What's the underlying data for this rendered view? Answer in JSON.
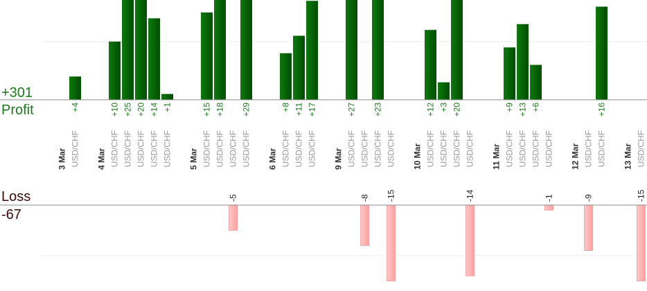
{
  "chart_data": {
    "type": "trade-bars",
    "profit": {
      "label": "Profit",
      "total": 301,
      "total_label": "+301",
      "gridlines": [
        10
      ]
    },
    "loss": {
      "label": "Loss",
      "total": -67,
      "gridlines": [
        -10
      ]
    },
    "days": [
      {
        "date": "3 Mar",
        "trades": [
          {
            "symbol": "USD/CHF",
            "value": 4,
            "label": "+4"
          }
        ]
      },
      {
        "date": "4 Mar",
        "trades": [
          {
            "symbol": "USD/CHF",
            "value": 10,
            "label": "+10"
          },
          {
            "symbol": "USD/CHF",
            "value": 25,
            "label": "+25"
          },
          {
            "symbol": "USD/CHF",
            "value": 20,
            "label": "+20"
          },
          {
            "symbol": "USD/CHF",
            "value": 14,
            "label": "+14"
          },
          {
            "symbol": "USD/CHF",
            "value": 1,
            "label": "+1"
          }
        ]
      },
      {
        "date": "5 Mar",
        "trades": [
          {
            "symbol": "USD/CHF",
            "value": 15,
            "label": "+15"
          },
          {
            "symbol": "USD/CHF",
            "value": 18,
            "label": "+18"
          },
          {
            "symbol": "USD/CHF",
            "value": -5
          },
          {
            "symbol": "USD/CHF",
            "value": 29,
            "label": "+29"
          }
        ]
      },
      {
        "date": "6 Mar",
        "trades": [
          {
            "symbol": "USD/CHF",
            "value": 8,
            "label": "+8"
          },
          {
            "symbol": "USD/CHF",
            "value": 11,
            "label": "+11"
          },
          {
            "symbol": "USD/CHF",
            "value": 17,
            "label": "+17"
          }
        ]
      },
      {
        "date": "9 Mar",
        "trades": [
          {
            "symbol": "USD/CHF",
            "value": 27,
            "label": "+27"
          },
          {
            "symbol": "USD/CHF",
            "value": -8
          },
          {
            "symbol": "USD/CHF",
            "value": 23,
            "label": "+23"
          },
          {
            "symbol": "USD/CHF",
            "value": -15
          }
        ]
      },
      {
        "date": "10 Mar",
        "trades": [
          {
            "symbol": "USD/CHF",
            "value": 12,
            "label": "+12"
          },
          {
            "symbol": "USD/CHF",
            "value": 3,
            "label": "+3"
          },
          {
            "symbol": "USD/CHF",
            "value": 20,
            "label": "+20"
          },
          {
            "symbol": "USD/CHF",
            "value": -14
          }
        ]
      },
      {
        "date": "11 Mar",
        "trades": [
          {
            "symbol": "USD/CHF",
            "value": 9,
            "label": "+9"
          },
          {
            "symbol": "USD/CHF",
            "value": 13,
            "label": "+13"
          },
          {
            "symbol": "USD/CHF",
            "value": 6,
            "label": "+6"
          },
          {
            "symbol": "USD/CHF",
            "value": -1
          }
        ]
      },
      {
        "date": "12 Mar",
        "trades": [
          {
            "symbol": "USD/CHF",
            "value": -9
          },
          {
            "symbol": "USD/CHF",
            "value": 16,
            "label": "+16"
          }
        ]
      },
      {
        "date": "13 Mar",
        "trades": [
          {
            "symbol": "USD/CHF",
            "value": -15
          }
        ]
      }
    ]
  }
}
